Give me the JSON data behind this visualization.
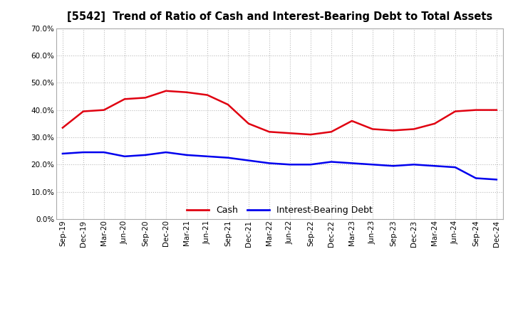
{
  "title": "[5542]  Trend of Ratio of Cash and Interest-Bearing Debt to Total Assets",
  "x_labels": [
    "Sep-19",
    "Dec-19",
    "Mar-20",
    "Jun-20",
    "Sep-20",
    "Dec-20",
    "Mar-21",
    "Jun-21",
    "Sep-21",
    "Dec-21",
    "Mar-22",
    "Jun-22",
    "Sep-22",
    "Dec-22",
    "Mar-23",
    "Jun-23",
    "Sep-23",
    "Dec-23",
    "Mar-24",
    "Jun-24",
    "Sep-24",
    "Dec-24"
  ],
  "cash": [
    33.5,
    39.5,
    40.0,
    44.0,
    44.5,
    47.0,
    46.5,
    45.5,
    42.0,
    35.0,
    32.0,
    31.5,
    31.0,
    32.0,
    36.0,
    33.0,
    32.5,
    33.0,
    35.0,
    39.5,
    40.0,
    40.0
  ],
  "ibd": [
    24.0,
    24.5,
    24.5,
    23.0,
    23.5,
    24.5,
    23.5,
    23.0,
    22.5,
    21.5,
    20.5,
    20.0,
    20.0,
    21.0,
    20.5,
    20.0,
    19.5,
    20.0,
    19.5,
    19.0,
    15.0,
    14.5
  ],
  "cash_color": "#e00010",
  "ibd_color": "#0000ee",
  "ylim": [
    0,
    70
  ],
  "yticks": [
    0,
    10,
    20,
    30,
    40,
    50,
    60,
    70
  ],
  "background_color": "#ffffff",
  "plot_bg_color": "#ffffff",
  "grid_color": "#bbbbbb",
  "legend_labels": [
    "Cash",
    "Interest-Bearing Debt"
  ],
  "line_width": 1.8
}
